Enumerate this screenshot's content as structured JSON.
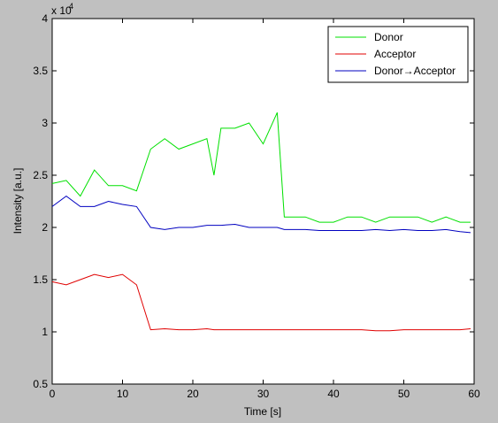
{
  "chart_data": {
    "type": "line",
    "title": "",
    "xlabel": "Time [s]",
    "ylabel": "Intensity [a.u.]",
    "y_scale_label": "x 10",
    "y_scale_exponent": "4",
    "xlim": [
      0,
      60
    ],
    "ylim": [
      0.5,
      4
    ],
    "xticks": [
      0,
      10,
      20,
      30,
      40,
      50,
      60
    ],
    "xtick_labels": [
      "0",
      "10",
      "20",
      "30",
      "40",
      "50",
      "60"
    ],
    "yticks": [
      0.5,
      1,
      1.5,
      2,
      2.5,
      3,
      3.5,
      4
    ],
    "ytick_labels": [
      "0.5",
      "1",
      "1.5",
      "2",
      "2.5",
      "3",
      "3.5",
      "4"
    ],
    "grid": false,
    "legend_position": "top-right",
    "x": [
      0,
      2,
      4,
      6,
      8,
      10,
      12,
      14,
      16,
      18,
      20,
      22,
      23,
      24,
      26,
      28,
      30,
      32,
      33,
      34,
      36,
      38,
      40,
      42,
      44,
      46,
      48,
      50,
      52,
      54,
      56,
      58,
      59.5
    ],
    "series": [
      {
        "name": "Donor",
        "color": "#00e000",
        "values": [
          2.42,
          2.45,
          2.3,
          2.55,
          2.4,
          2.4,
          2.35,
          2.75,
          2.85,
          2.75,
          2.8,
          2.85,
          2.5,
          2.95,
          2.95,
          3.0,
          2.8,
          3.1,
          2.1,
          2.1,
          2.1,
          2.05,
          2.05,
          2.1,
          2.1,
          2.05,
          2.1,
          2.1,
          2.1,
          2.05,
          2.1,
          2.05,
          2.05
        ]
      },
      {
        "name": "Acceptor",
        "color": "#e00000",
        "values": [
          1.48,
          1.45,
          1.5,
          1.55,
          1.52,
          1.55,
          1.45,
          1.02,
          1.03,
          1.02,
          1.02,
          1.03,
          1.02,
          1.02,
          1.02,
          1.02,
          1.02,
          1.02,
          1.02,
          1.02,
          1.02,
          1.02,
          1.02,
          1.02,
          1.02,
          1.01,
          1.01,
          1.02,
          1.02,
          1.02,
          1.02,
          1.02,
          1.03
        ]
      },
      {
        "name": "Donor→Acceptor",
        "color": "#0000c0",
        "values": [
          2.2,
          2.3,
          2.2,
          2.2,
          2.25,
          2.22,
          2.2,
          2.0,
          1.98,
          2.0,
          2.0,
          2.02,
          2.02,
          2.02,
          2.03,
          2.0,
          2.0,
          2.0,
          1.98,
          1.98,
          1.98,
          1.97,
          1.97,
          1.97,
          1.97,
          1.98,
          1.97,
          1.98,
          1.97,
          1.97,
          1.98,
          1.96,
          1.95
        ]
      }
    ]
  }
}
